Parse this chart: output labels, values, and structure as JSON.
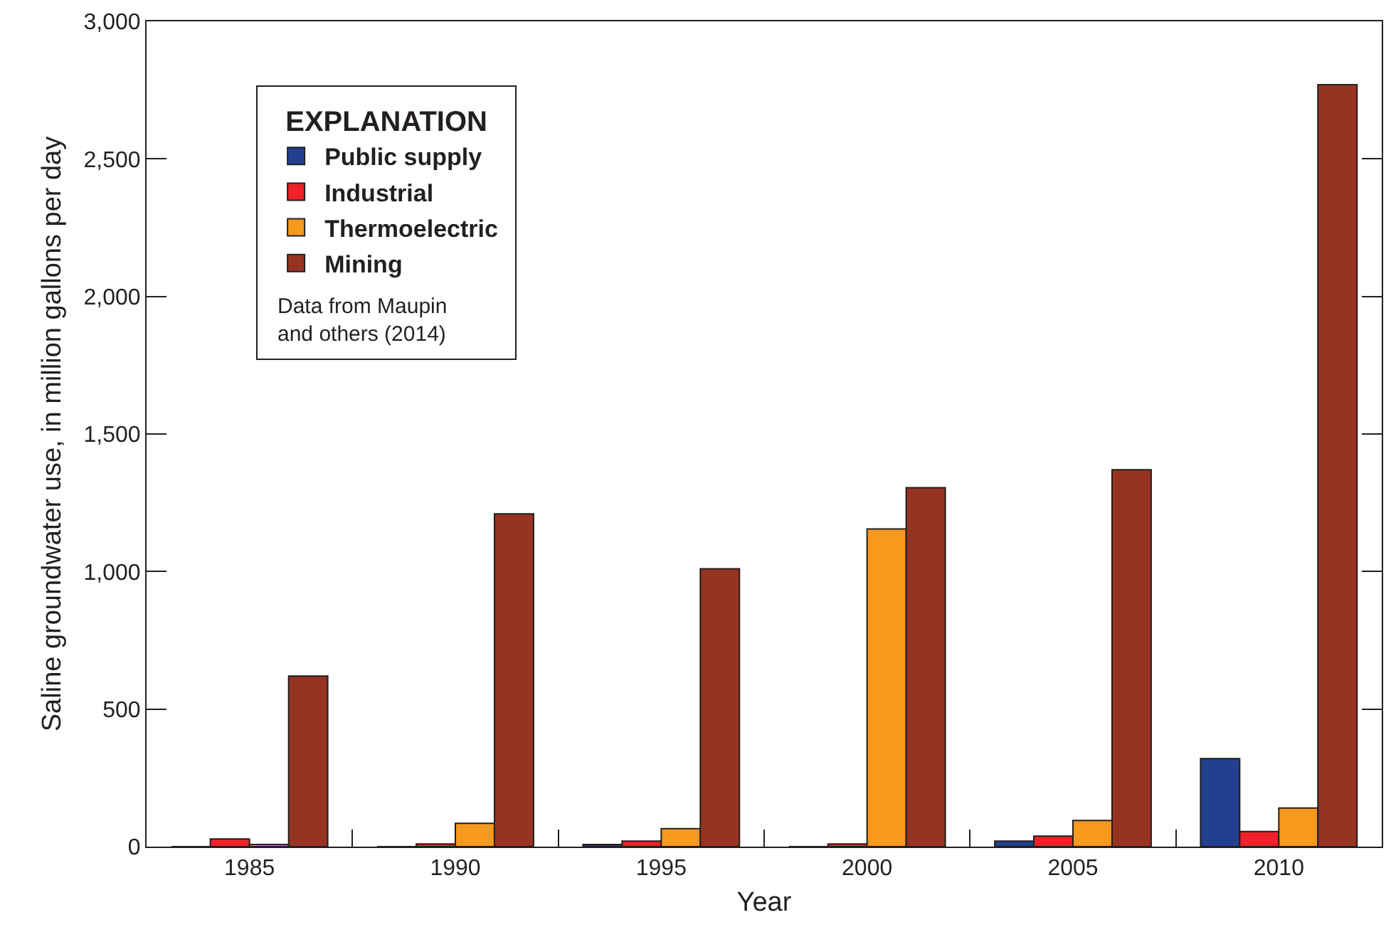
{
  "chart_data": {
    "type": "bar",
    "xlabel": "Year",
    "ylabel": "Saline groundwater use, in million gallons per day",
    "legend_title": "EXPLANATION",
    "annotations": [
      "Data from Maupin and others (2014)"
    ],
    "categories": [
      "1985",
      "1990",
      "1995",
      "2000",
      "2005",
      "2010"
    ],
    "series": [
      {
        "name": "Public supply",
        "color": "#233f8f",
        "values": [
          0,
          0,
          8,
          0,
          20,
          320
        ]
      },
      {
        "name": "Industrial",
        "color": "#ee2228",
        "values": [
          28,
          10,
          20,
          10,
          38,
          55
        ]
      },
      {
        "name": "Thermoelectric",
        "color": "#f7991d",
        "values": [
          8,
          85,
          65,
          1155,
          95,
          140
        ]
      },
      {
        "name": "Mining",
        "color": "#963421",
        "values": [
          620,
          1210,
          1010,
          1305,
          1370,
          2770
        ]
      }
    ],
    "ylim": [
      0,
      3000
    ],
    "yticks": [
      0,
      500,
      {
        "value": 1000,
        "label": "1,000"
      },
      {
        "value": 1500,
        "label": "1,500"
      },
      {
        "value": 2000,
        "label": "2,000"
      },
      {
        "value": 2500,
        "label": "2,500"
      },
      {
        "value": 3000,
        "label": "3,000"
      }
    ],
    "grid": false,
    "legend": "top left"
  }
}
